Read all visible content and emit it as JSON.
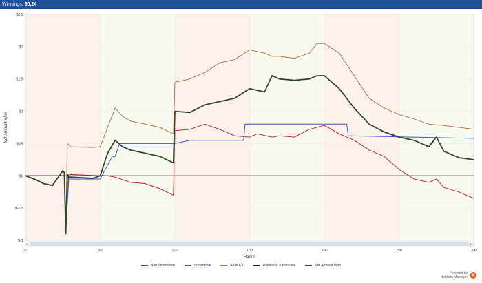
{
  "header": {
    "winnings_label": "Winnings:",
    "winnings_value": "$0,24"
  },
  "branding": {
    "line1": "Powered by",
    "line2": "Hold'em Manager",
    "badge": "2"
  },
  "colors": {
    "non_showdown": "#c02828",
    "showdown": "#3a57c4",
    "allin_ev": "#b07848",
    "rakeback": "#0a1a9a",
    "net": "#2e4a2a"
  },
  "chart_data": {
    "type": "line",
    "xlabel": "Hands",
    "ylabel": "Net Amount Won",
    "xlim": [
      0,
      300
    ],
    "ylim": [
      -1,
      2.5
    ],
    "x_ticks": [
      "0",
      "50",
      "100",
      "150",
      "200",
      "250",
      "300"
    ],
    "y_ticks": [
      "$-1",
      "$-0,5",
      "$0",
      "$0,5",
      "$1",
      "$1,5",
      "$2",
      "$2,5"
    ],
    "legend": [
      "Non Showdown",
      "Showdown",
      "All-in EV",
      "Rakeback & Bonuses",
      "Net Amount Won"
    ],
    "series": [
      {
        "name": "Non Showdown",
        "color": "#c02828",
        "x": [
          0,
          8,
          12,
          18,
          25,
          26,
          27,
          29,
          30,
          50,
          55,
          60,
          65,
          70,
          80,
          90,
          99,
          100,
          110,
          120,
          130,
          140,
          150,
          155,
          165,
          170,
          180,
          190,
          200,
          210,
          220,
          230,
          240,
          250,
          260,
          270,
          275,
          280,
          290,
          300
        ],
        "y": [
          0,
          -0.07,
          -0.12,
          -0.15,
          0.08,
          0.05,
          -0.8,
          0.03,
          0.02,
          0.0,
          0.0,
          -0.02,
          -0.06,
          -0.1,
          -0.12,
          -0.2,
          -0.3,
          0.7,
          0.72,
          0.8,
          0.72,
          0.62,
          0.6,
          0.65,
          0.6,
          0.62,
          0.6,
          0.72,
          0.78,
          0.65,
          0.55,
          0.4,
          0.3,
          0.1,
          -0.05,
          -0.1,
          -0.05,
          -0.18,
          -0.25,
          -0.35
        ]
      },
      {
        "name": "Showdown",
        "color": "#3a57c4",
        "x": [
          0,
          26,
          27,
          29,
          30,
          35,
          50,
          58,
          60,
          63,
          90,
          100,
          110,
          120,
          135,
          146,
          147,
          200,
          215,
          216,
          300
        ],
        "y": [
          0,
          0,
          -0.85,
          -0.05,
          -0.05,
          -0.05,
          -0.05,
          0.3,
          0.3,
          0.5,
          0.5,
          0.5,
          0.55,
          0.55,
          0.55,
          0.55,
          0.8,
          0.8,
          0.8,
          0.62,
          0.58
        ]
      },
      {
        "name": "All-in EV",
        "color": "#b07848",
        "x": [
          0,
          12,
          18,
          25,
          26,
          27,
          28,
          29,
          30,
          45,
          50,
          55,
          60,
          65,
          70,
          80,
          90,
          99,
          100,
          110,
          120,
          130,
          140,
          150,
          160,
          165,
          170,
          180,
          190,
          195,
          200,
          210,
          220,
          230,
          240,
          250,
          260,
          270,
          280,
          290,
          300
        ],
        "y": [
          0,
          -0.12,
          -0.15,
          0.08,
          0.05,
          -0.8,
          0.5,
          0.48,
          0.45,
          0.44,
          0.45,
          0.75,
          1.05,
          0.92,
          0.85,
          0.8,
          0.75,
          0.65,
          1.45,
          1.5,
          1.6,
          1.75,
          1.8,
          1.95,
          1.9,
          1.85,
          1.85,
          1.82,
          1.9,
          2.05,
          2.05,
          1.9,
          1.55,
          1.2,
          1.05,
          0.95,
          0.88,
          0.8,
          0.78,
          0.75,
          0.72
        ]
      },
      {
        "name": "Net Amount Won",
        "color": "#2e4a2a",
        "x": [
          0,
          8,
          12,
          18,
          25,
          26,
          27,
          28,
          29,
          30,
          45,
          50,
          55,
          60,
          65,
          70,
          80,
          90,
          99,
          100,
          110,
          120,
          130,
          140,
          150,
          160,
          165,
          170,
          180,
          190,
          195,
          200,
          210,
          220,
          230,
          240,
          250,
          260,
          270,
          275,
          280,
          290,
          300
        ],
        "y": [
          0,
          -0.07,
          -0.12,
          -0.15,
          0.08,
          0.05,
          -0.9,
          0.02,
          -0.02,
          -0.02,
          -0.04,
          0.0,
          0.35,
          0.55,
          0.45,
          0.4,
          0.35,
          0.3,
          0.2,
          1.0,
          0.98,
          1.1,
          1.15,
          1.2,
          1.35,
          1.3,
          1.55,
          1.5,
          1.48,
          1.5,
          1.55,
          1.55,
          1.35,
          1.05,
          0.8,
          0.68,
          0.6,
          0.55,
          0.45,
          0.6,
          0.38,
          0.28,
          0.25
        ]
      },
      {
        "name": "Zero baseline",
        "color": "#000000",
        "x": [
          0,
          300
        ],
        "y": [
          0,
          0
        ]
      }
    ]
  }
}
